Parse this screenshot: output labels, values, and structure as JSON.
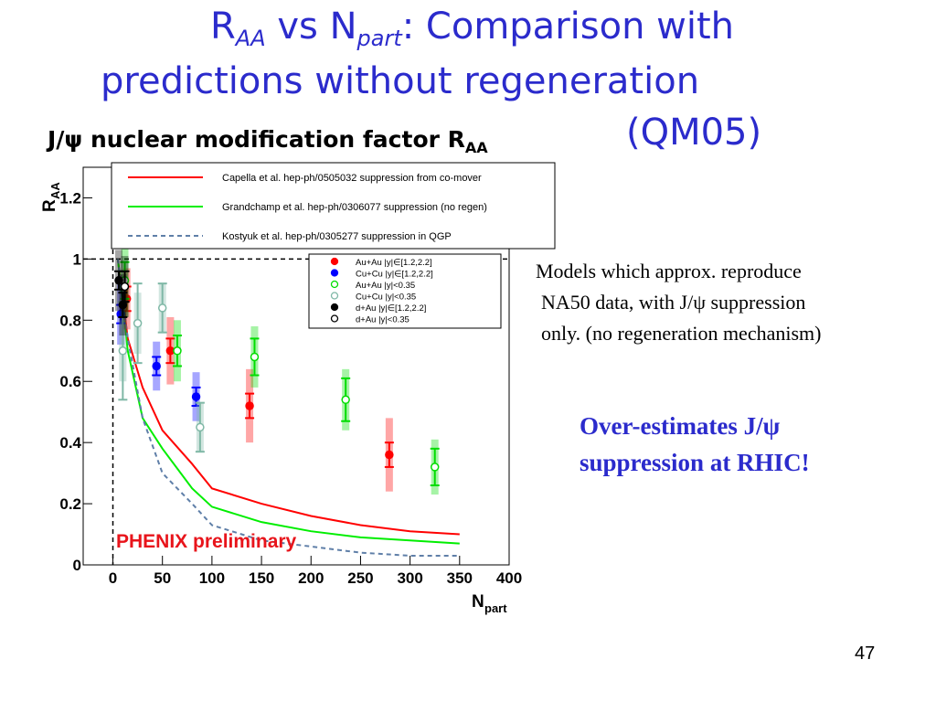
{
  "slide": {
    "title_line1_main": "R",
    "title_line1_sub1": "AA",
    "title_line1_mid": " vs N",
    "title_line1_sub2": "part",
    "title_line1_rest": ": Comparison with",
    "title_line2": "predictions without regeneration",
    "title_line3": "(QM05)",
    "note1_lines": [
      "Models which approx. reproduce",
      "NA50 data, with J/ψ suppression",
      "only. (no regeneration mechanism)"
    ],
    "note2_lines": [
      "Over-estimates J/ψ",
      "suppression at RHIC!"
    ],
    "page_number": "47"
  },
  "chart_data": {
    "type": "scatter",
    "title_main": "J/ψ nuclear modification factor R",
    "title_sub": "AA",
    "xlabel": "N",
    "xlabel_sub": "part",
    "ylabel": "R",
    "ylabel_sub": "AA",
    "xlim": [
      -30,
      400
    ],
    "ylim": [
      0,
      1.3
    ],
    "x_ticks": [
      0,
      50,
      100,
      150,
      200,
      250,
      300,
      350,
      400
    ],
    "y_ticks": [
      0,
      0.2,
      0.4,
      0.6,
      0.8,
      1,
      1.2
    ],
    "y_tick_labels": [
      "0",
      "0.2",
      "0.4",
      "0.6",
      "0.8",
      "1",
      "1.2"
    ],
    "reference_line_y": 1,
    "reference_line_x": 0,
    "annotation": "PHENIX preliminary",
    "annotation_color": "#e8141b",
    "models": [
      {
        "label": "Capella et al. hep-ph/0505032 suppression from co-mover",
        "color": "#ff0000",
        "dash": "solid",
        "x": [
          5,
          15,
          30,
          50,
          80,
          100,
          150,
          200,
          250,
          300,
          350
        ],
        "y": [
          1.0,
          0.74,
          0.58,
          0.44,
          0.33,
          0.25,
          0.2,
          0.16,
          0.13,
          0.11,
          0.1
        ]
      },
      {
        "label": "Grandchamp et al. hep-ph/0306077 suppression (no regen)",
        "color": "#00ee00",
        "dash": "solid",
        "x": [
          5,
          15,
          30,
          50,
          80,
          100,
          150,
          200,
          250,
          300,
          350
        ],
        "y": [
          1.0,
          0.7,
          0.48,
          0.38,
          0.25,
          0.19,
          0.14,
          0.11,
          0.09,
          0.08,
          0.07
        ]
      },
      {
        "label": "Kostyuk et al. hep-ph/0305277 suppression in QGP",
        "color": "#5f7fa8",
        "dash": "dashed",
        "x": [
          5,
          15,
          30,
          50,
          80,
          100,
          150,
          200,
          250,
          300,
          350
        ],
        "y": [
          1.0,
          0.74,
          0.48,
          0.3,
          0.2,
          0.13,
          0.08,
          0.06,
          0.04,
          0.03,
          0.03
        ]
      }
    ],
    "series": [
      {
        "name": "Au+Au |y|∈[1.2,2.2]",
        "color": "#ff0000",
        "marker": "filled",
        "points": [
          {
            "x": 14,
            "y": 0.87,
            "err": 0.04,
            "sys": 0.1
          },
          {
            "x": 58,
            "y": 0.7,
            "err": 0.04,
            "sys": 0.11
          },
          {
            "x": 138,
            "y": 0.52,
            "err": 0.04,
            "sys": 0.12
          },
          {
            "x": 279,
            "y": 0.36,
            "err": 0.04,
            "sys": 0.12
          }
        ]
      },
      {
        "name": "Cu+Cu |y|∈[1.2,2.2]",
        "color": "#0000ff",
        "marker": "filled",
        "points": [
          {
            "x": 8,
            "y": 0.82,
            "err": 0.03,
            "sys": 0.1
          },
          {
            "x": 44,
            "y": 0.65,
            "err": 0.03,
            "sys": 0.08
          },
          {
            "x": 84,
            "y": 0.55,
            "err": 0.03,
            "sys": 0.08
          }
        ]
      },
      {
        "name": "Au+Au |y|<0.35",
        "color": "#00dd00",
        "marker": "open",
        "points": [
          {
            "x": 12,
            "y": 0.93,
            "err": 0.06,
            "sys": 0.12
          },
          {
            "x": 65,
            "y": 0.7,
            "err": 0.05,
            "sys": 0.1
          },
          {
            "x": 143,
            "y": 0.68,
            "err": 0.06,
            "sys": 0.1
          },
          {
            "x": 235,
            "y": 0.54,
            "err": 0.07,
            "sys": 0.1
          },
          {
            "x": 325,
            "y": 0.32,
            "err": 0.06,
            "sys": 0.09
          }
        ]
      },
      {
        "name": "Cu+Cu |y|<0.35",
        "color": "#7fb8a6",
        "marker": "open",
        "points": [
          {
            "x": 10,
            "y": 0.7,
            "err": 0.16,
            "sys": 0.1
          },
          {
            "x": 25,
            "y": 0.79,
            "err": 0.13,
            "sys": 0.1
          },
          {
            "x": 50,
            "y": 0.84,
            "err": 0.08,
            "sys": 0.08
          },
          {
            "x": 88,
            "y": 0.45,
            "err": 0.08,
            "sys": 0.08
          }
        ]
      },
      {
        "name": "d+Au |y|∈[1.2,2.2]",
        "color": "#000000",
        "marker": "filled",
        "points": [
          {
            "x": 6,
            "y": 0.93,
            "err": 0.03,
            "sys": 0.1
          },
          {
            "x": 10,
            "y": 0.85,
            "err": 0.04,
            "sys": 0.1
          }
        ]
      },
      {
        "name": "d+Au |y|<0.35",
        "color": "#000000",
        "marker": "open",
        "points": [
          {
            "x": 12,
            "y": 0.91,
            "err": 0.05,
            "sys": 0.1
          }
        ]
      }
    ]
  }
}
